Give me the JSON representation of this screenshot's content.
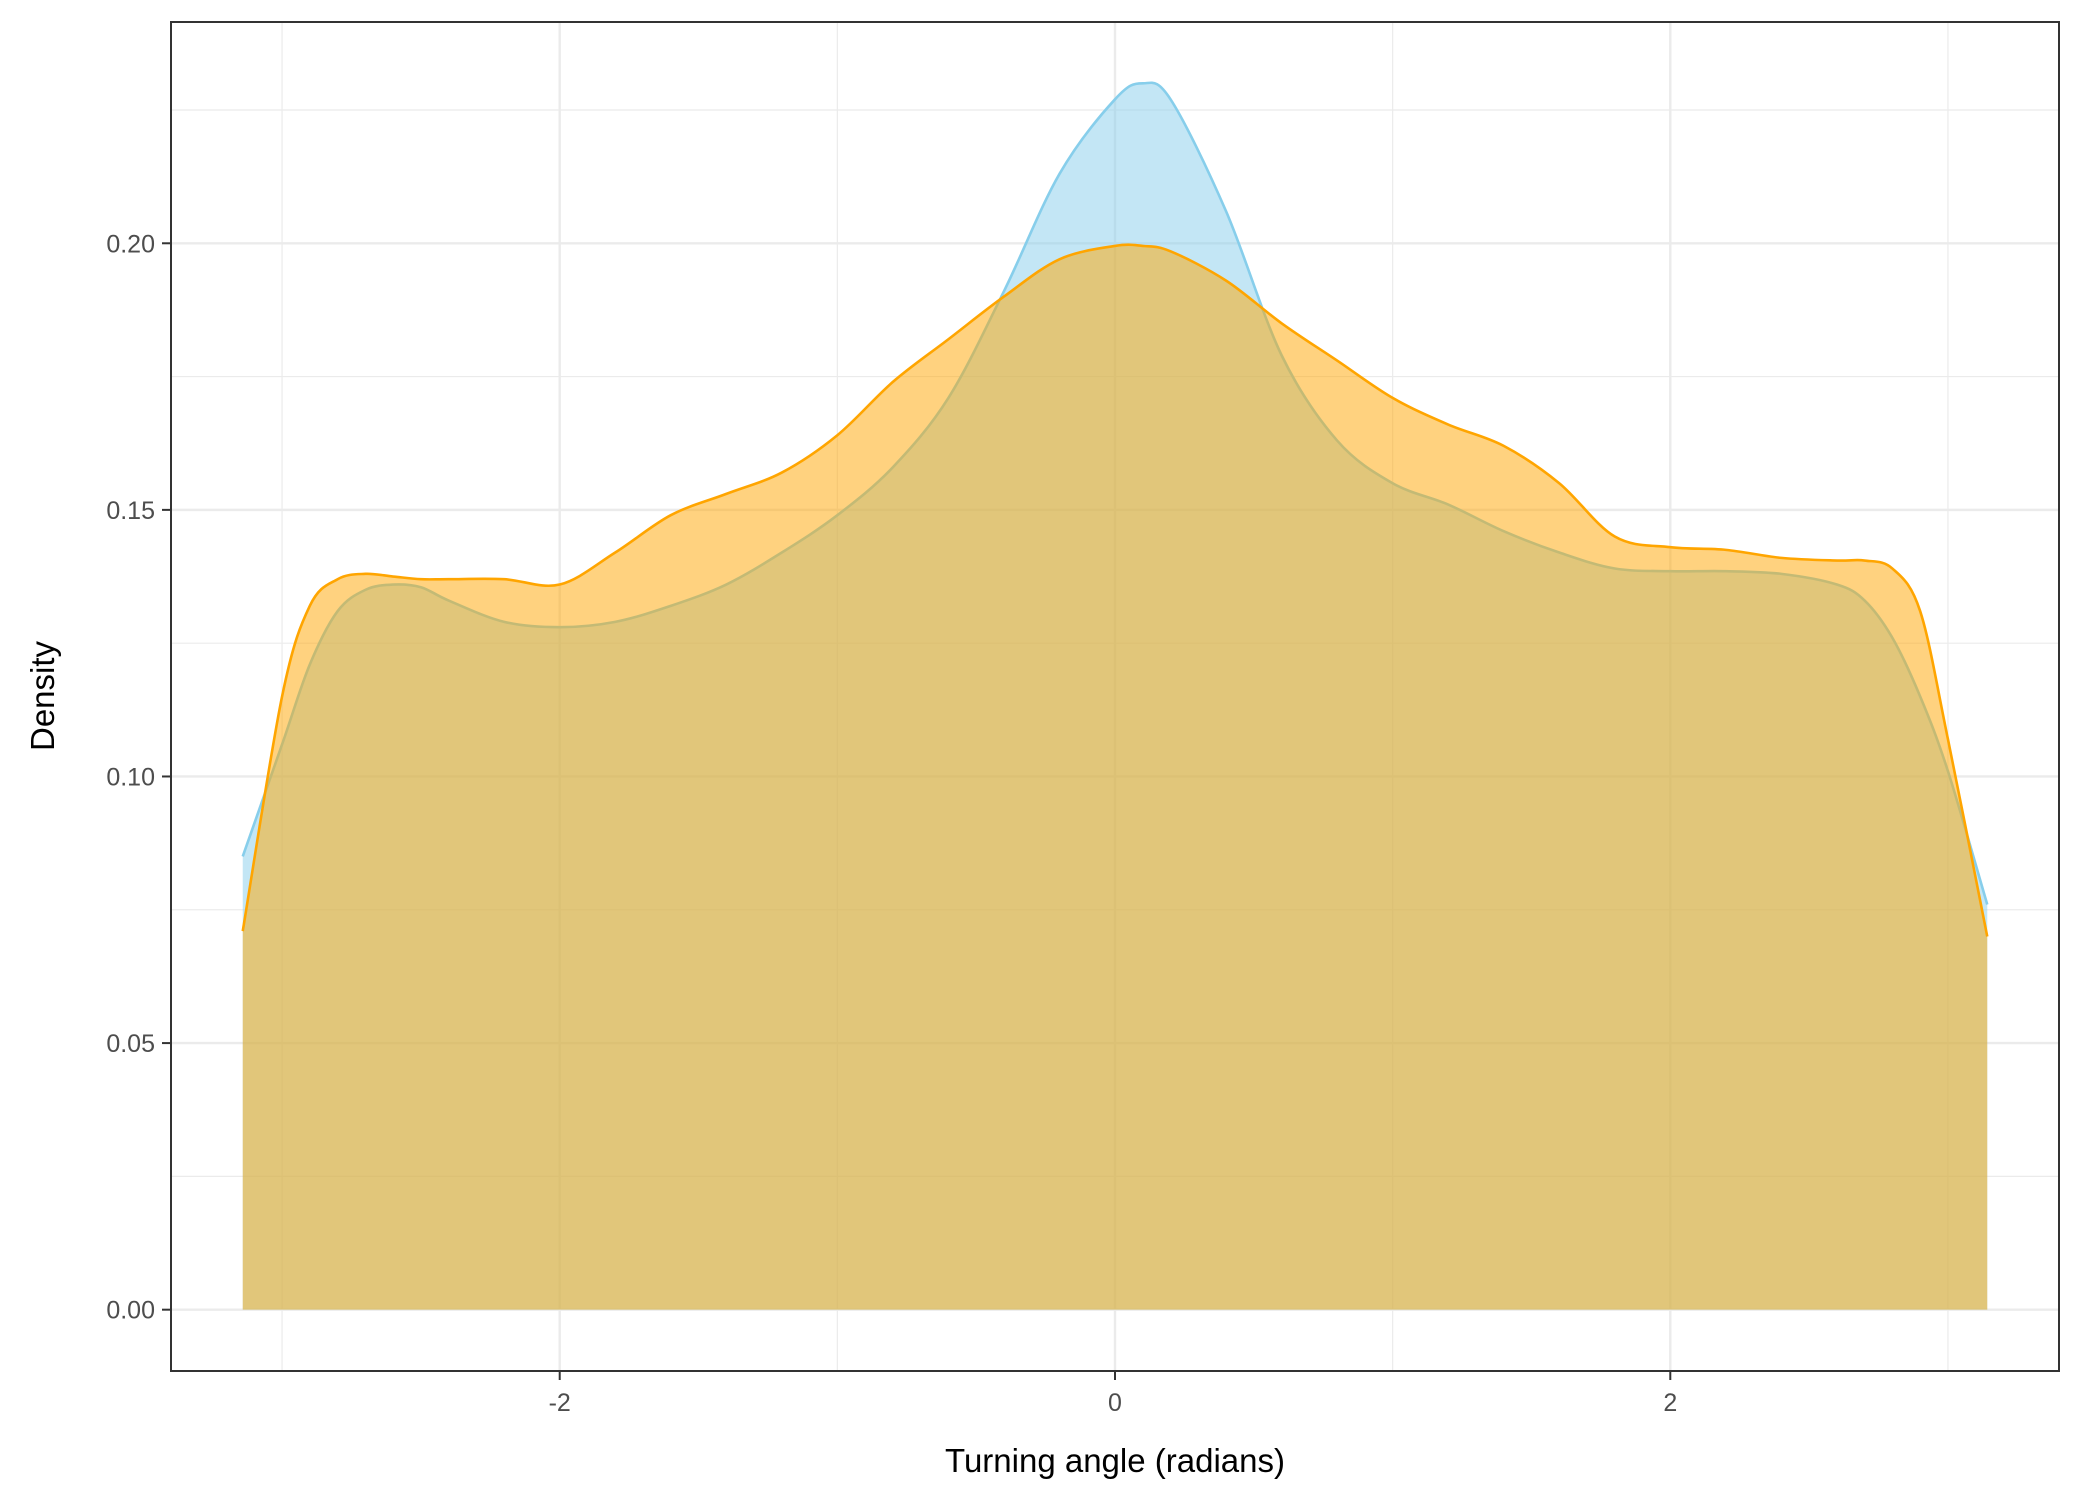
{
  "chart_data": {
    "type": "area",
    "title": "",
    "xlabel": "Turning angle (radians)",
    "ylabel": "Density",
    "xlim": [
      -3.4,
      3.4
    ],
    "ylim": [
      -0.0115,
      0.2415
    ],
    "x_ticks": [
      -2,
      0,
      2
    ],
    "x_tick_labels": [
      "-2",
      "0",
      "2"
    ],
    "y_ticks": [
      0.0,
      0.05,
      0.1,
      0.15,
      0.2
    ],
    "y_tick_labels": [
      "0.00",
      "0.05",
      "0.10",
      "0.15",
      "0.20"
    ],
    "grid": true,
    "legend": "none",
    "series": [
      {
        "color": "#87CEEB",
        "fill_opacity": 0.5,
        "x": [
          -3.1416,
          -3.0,
          -2.9,
          -2.8,
          -2.7,
          -2.6,
          -2.5,
          -2.4,
          -2.2,
          -2.0,
          -1.8,
          -1.6,
          -1.4,
          -1.2,
          -1.0,
          -0.8,
          -0.6,
          -0.4,
          -0.2,
          0.0,
          0.1,
          0.2,
          0.4,
          0.6,
          0.8,
          1.0,
          1.2,
          1.4,
          1.6,
          1.8,
          2.0,
          2.2,
          2.4,
          2.6,
          2.7,
          2.8,
          2.9,
          3.0,
          3.1416
        ],
        "y": [
          0.085,
          0.106,
          0.121,
          0.131,
          0.135,
          0.136,
          0.1355,
          0.133,
          0.129,
          0.128,
          0.129,
          0.132,
          0.136,
          0.142,
          0.149,
          0.158,
          0.171,
          0.191,
          0.213,
          0.227,
          0.23,
          0.227,
          0.206,
          0.179,
          0.163,
          0.155,
          0.151,
          0.146,
          0.142,
          0.139,
          0.1385,
          0.1385,
          0.138,
          0.136,
          0.133,
          0.126,
          0.115,
          0.101,
          0.076
        ]
      },
      {
        "color": "#FFA500",
        "fill_opacity": 0.5,
        "x": [
          -3.1416,
          -3.0,
          -2.9,
          -2.8,
          -2.7,
          -2.6,
          -2.5,
          -2.4,
          -2.2,
          -2.0,
          -1.8,
          -1.6,
          -1.4,
          -1.2,
          -1.0,
          -0.8,
          -0.6,
          -0.4,
          -0.2,
          0.0,
          0.1,
          0.2,
          0.4,
          0.6,
          0.8,
          1.0,
          1.2,
          1.4,
          1.6,
          1.8,
          2.0,
          2.2,
          2.4,
          2.6,
          2.7,
          2.8,
          2.9,
          3.0,
          3.1416
        ],
        "y": [
          0.071,
          0.115,
          0.132,
          0.137,
          0.138,
          0.1375,
          0.137,
          0.137,
          0.137,
          0.136,
          0.142,
          0.149,
          0.153,
          0.157,
          0.164,
          0.174,
          0.182,
          0.19,
          0.197,
          0.1995,
          0.1995,
          0.1985,
          0.193,
          0.185,
          0.178,
          0.171,
          0.166,
          0.162,
          0.155,
          0.145,
          0.143,
          0.1425,
          0.141,
          0.1405,
          0.1405,
          0.139,
          0.131,
          0.107,
          0.07
        ]
      }
    ]
  }
}
